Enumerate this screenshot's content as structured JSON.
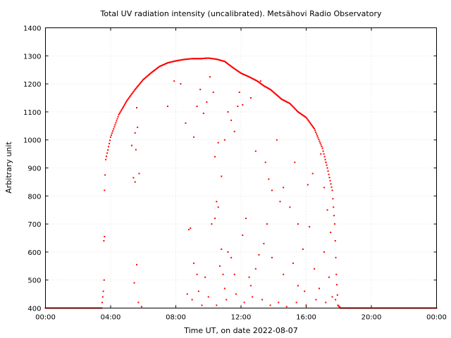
{
  "chart_data": {
    "type": "scatter",
    "title": "Total UV radiation intensity (uncalibrated). Metsähovi Radio Observatory",
    "xlabel": "Time UT, on date 2022-08-07",
    "ylabel": "Arbitrary unit",
    "xlim": [
      0,
      24
    ],
    "ylim": [
      400,
      1400
    ],
    "x_ticks": [
      0,
      4,
      8,
      12,
      16,
      20,
      24
    ],
    "x_tick_labels": [
      "00:00",
      "04:00",
      "08:00",
      "12:00",
      "16:00",
      "20:00",
      "00:00"
    ],
    "y_ticks": [
      400,
      500,
      600,
      700,
      800,
      900,
      1000,
      1100,
      1200,
      1300,
      1400
    ],
    "y_tick_labels": [
      "400",
      "500",
      "600",
      "700",
      "800",
      "900",
      "1000",
      "1100",
      "1200",
      "1300",
      "1400"
    ],
    "grid": true,
    "marker_color": "#ff0000",
    "series": [
      {
        "upper_envelope": [
          [
            0.0,
            400
          ],
          [
            3.45,
            400
          ],
          [
            3.55,
            460
          ],
          [
            3.62,
            820
          ],
          [
            3.7,
            930
          ],
          [
            4.0,
            1010
          ],
          [
            4.5,
            1090
          ],
          [
            5.0,
            1140
          ],
          [
            5.5,
            1180
          ],
          [
            6.0,
            1215
          ],
          [
            6.5,
            1240
          ],
          [
            7.0,
            1262
          ],
          [
            7.5,
            1275
          ],
          [
            8.0,
            1282
          ],
          [
            8.5,
            1287
          ],
          [
            9.0,
            1290
          ],
          [
            9.5,
            1290
          ],
          [
            10.0,
            1292
          ],
          [
            10.5,
            1288
          ],
          [
            11.0,
            1280
          ],
          [
            11.5,
            1258
          ],
          [
            12.0,
            1238
          ],
          [
            12.5,
            1225
          ],
          [
            13.0,
            1210
          ],
          [
            13.4,
            1193
          ],
          [
            13.8,
            1180
          ],
          [
            14.2,
            1160
          ],
          [
            14.5,
            1145
          ],
          [
            15.0,
            1130
          ],
          [
            15.5,
            1100
          ],
          [
            16.0,
            1080
          ],
          [
            16.5,
            1040
          ],
          [
            17.0,
            970
          ],
          [
            17.3,
            900
          ],
          [
            17.6,
            820
          ],
          [
            17.75,
            700
          ],
          [
            17.85,
            520
          ],
          [
            17.95,
            410
          ],
          [
            18.1,
            400
          ],
          [
            24.0,
            400
          ]
        ],
        "scatter_points": [
          [
            3.62,
            655
          ],
          [
            3.6,
            500
          ],
          [
            5.3,
            980
          ],
          [
            5.4,
            865
          ],
          [
            5.5,
            850
          ],
          [
            5.55,
            965
          ],
          [
            5.6,
            1115
          ],
          [
            5.65,
            1045
          ],
          [
            5.75,
            880
          ],
          [
            5.5,
            1025
          ],
          [
            5.45,
            490
          ],
          [
            5.6,
            555
          ],
          [
            5.7,
            420
          ],
          [
            5.9,
            405
          ],
          [
            7.5,
            1120
          ],
          [
            7.9,
            1210
          ],
          [
            8.3,
            1200
          ],
          [
            8.6,
            1060
          ],
          [
            9.1,
            1010
          ],
          [
            9.3,
            1120
          ],
          [
            9.5,
            1180
          ],
          [
            9.7,
            1095
          ],
          [
            9.9,
            1135
          ],
          [
            9.6,
            1290
          ],
          [
            10.1,
            1225
          ],
          [
            10.3,
            1170
          ],
          [
            10.4,
            940
          ],
          [
            10.6,
            990
          ],
          [
            10.8,
            870
          ],
          [
            11.0,
            1000
          ],
          [
            11.2,
            1100
          ],
          [
            11.4,
            1070
          ],
          [
            11.6,
            1030
          ],
          [
            11.8,
            1120
          ],
          [
            11.9,
            1170
          ],
          [
            12.1,
            1125
          ],
          [
            12.6,
            1150
          ],
          [
            12.9,
            960
          ],
          [
            13.2,
            1210
          ],
          [
            13.5,
            920
          ],
          [
            13.7,
            860
          ],
          [
            13.9,
            820
          ],
          [
            14.2,
            1000
          ],
          [
            14.6,
            830
          ],
          [
            15.0,
            760
          ],
          [
            15.3,
            920
          ],
          [
            15.5,
            700
          ],
          [
            15.8,
            610
          ],
          [
            16.1,
            840
          ],
          [
            16.4,
            880
          ],
          [
            17.1,
            830
          ],
          [
            17.3,
            750
          ],
          [
            17.5,
            670
          ],
          [
            17.2,
            920
          ],
          [
            16.9,
            950
          ],
          [
            8.8,
            680
          ],
          [
            8.9,
            685
          ],
          [
            9.1,
            560
          ],
          [
            9.3,
            520
          ],
          [
            9.8,
            510
          ],
          [
            10.2,
            700
          ],
          [
            10.4,
            720
          ],
          [
            10.5,
            780
          ],
          [
            10.6,
            760
          ],
          [
            10.8,
            610
          ],
          [
            10.9,
            520
          ],
          [
            10.7,
            550
          ],
          [
            11.0,
            470
          ],
          [
            11.2,
            600
          ],
          [
            11.4,
            580
          ],
          [
            11.6,
            520
          ],
          [
            12.1,
            660
          ],
          [
            12.3,
            720
          ],
          [
            12.5,
            510
          ],
          [
            12.6,
            480
          ],
          [
            12.9,
            540
          ],
          [
            13.1,
            590
          ],
          [
            13.4,
            630
          ],
          [
            13.6,
            700
          ],
          [
            13.9,
            580
          ],
          [
            14.4,
            780
          ],
          [
            14.6,
            520
          ],
          [
            15.2,
            560
          ],
          [
            15.5,
            480
          ],
          [
            15.9,
            460
          ],
          [
            16.2,
            690
          ],
          [
            16.5,
            540
          ],
          [
            16.8,
            470
          ],
          [
            17.1,
            600
          ],
          [
            17.4,
            510
          ],
          [
            8.7,
            450
          ],
          [
            9.0,
            430
          ],
          [
            9.4,
            460
          ],
          [
            9.6,
            410
          ],
          [
            10.0,
            440
          ],
          [
            10.5,
            410
          ],
          [
            11.1,
            430
          ],
          [
            11.7,
            450
          ],
          [
            12.2,
            420
          ],
          [
            12.7,
            440
          ],
          [
            13.3,
            430
          ],
          [
            13.8,
            410
          ],
          [
            14.3,
            420
          ],
          [
            14.8,
            405
          ],
          [
            15.4,
            420
          ],
          [
            16.0,
            410
          ],
          [
            16.6,
            430
          ],
          [
            17.2,
            420
          ],
          [
            17.6,
            440
          ],
          [
            17.8,
            430
          ]
        ]
      }
    ]
  }
}
